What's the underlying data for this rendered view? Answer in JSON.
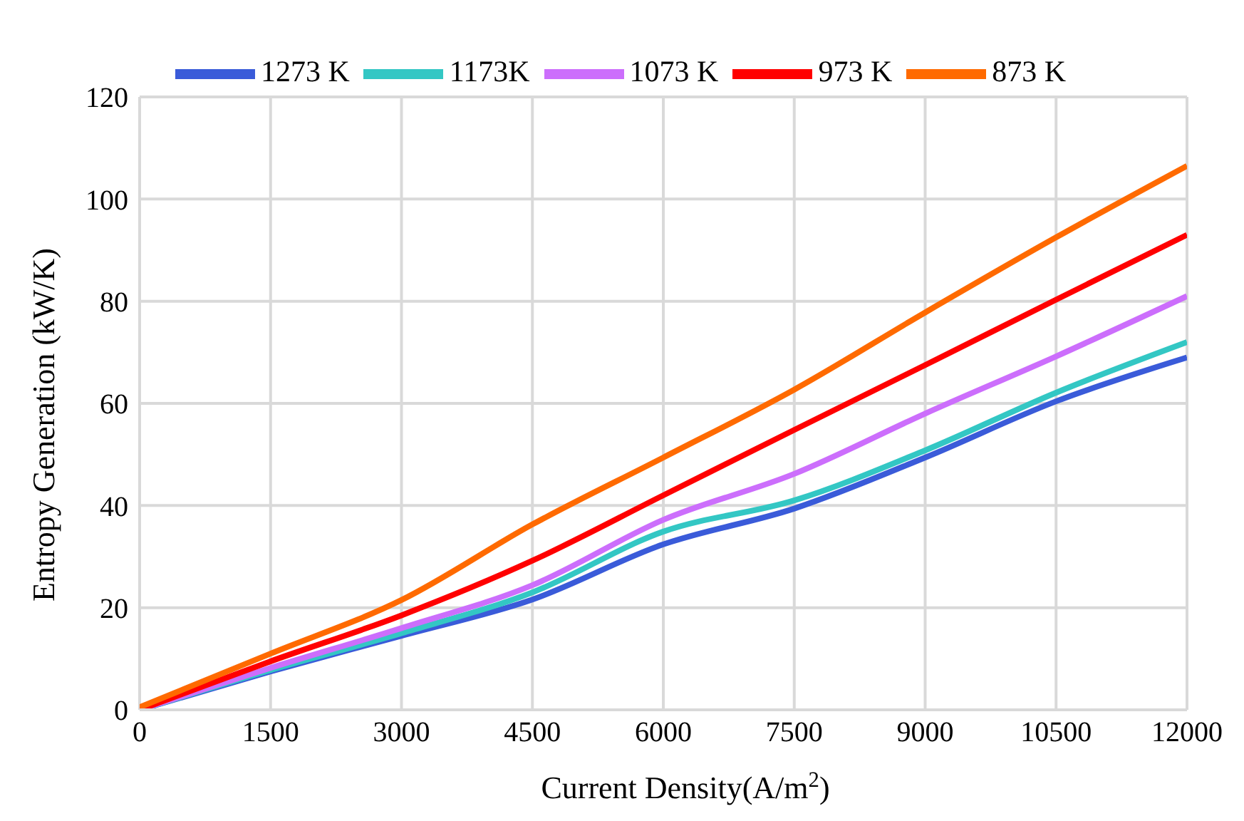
{
  "chart_data": {
    "type": "line",
    "xlabel": "Current Density(A/m$^{2}$)",
    "ylabel": "Entropy Generation (kW/K)",
    "x": [
      0,
      1500,
      3000,
      4500,
      6000,
      7500,
      9000,
      10500,
      12000
    ],
    "series": [
      {
        "name": "1273 K",
        "color": "#3a5bd9",
        "values": [
          0,
          7.5,
          14.5,
          21.6,
          32.4,
          39.4,
          49.4,
          60.4,
          69
        ]
      },
      {
        "name": "1173K",
        "color": "#33c7c4",
        "values": [
          0,
          7.8,
          15,
          23,
          34.9,
          41,
          50.8,
          62.1,
          72
        ]
      },
      {
        "name": "1073 K",
        "color": "#cc6efc",
        "values": [
          0,
          8.2,
          16,
          24.4,
          37.2,
          46.2,
          58,
          69.2,
          81
        ]
      },
      {
        "name": "973 K",
        "color": "#ff0000",
        "values": [
          0,
          9.5,
          18.5,
          29.2,
          42,
          54.8,
          67.5,
          80.3,
          93
        ]
      },
      {
        "name": "873 K",
        "color": "#ff6a00",
        "values": [
          0.5,
          11,
          21.5,
          36.3,
          49.4,
          62.7,
          77.8,
          92.5,
          106.5
        ]
      }
    ],
    "xlim": [
      0,
      12000
    ],
    "xticks": [
      0,
      1500,
      3000,
      4500,
      6000,
      7500,
      9000,
      10500,
      12000
    ],
    "ylim": [
      0,
      120
    ],
    "yticks": [
      0,
      20,
      40,
      60,
      80,
      100,
      120
    ],
    "grid": true,
    "legend": "top",
    "marker": "none",
    "line_style": "solid"
  }
}
